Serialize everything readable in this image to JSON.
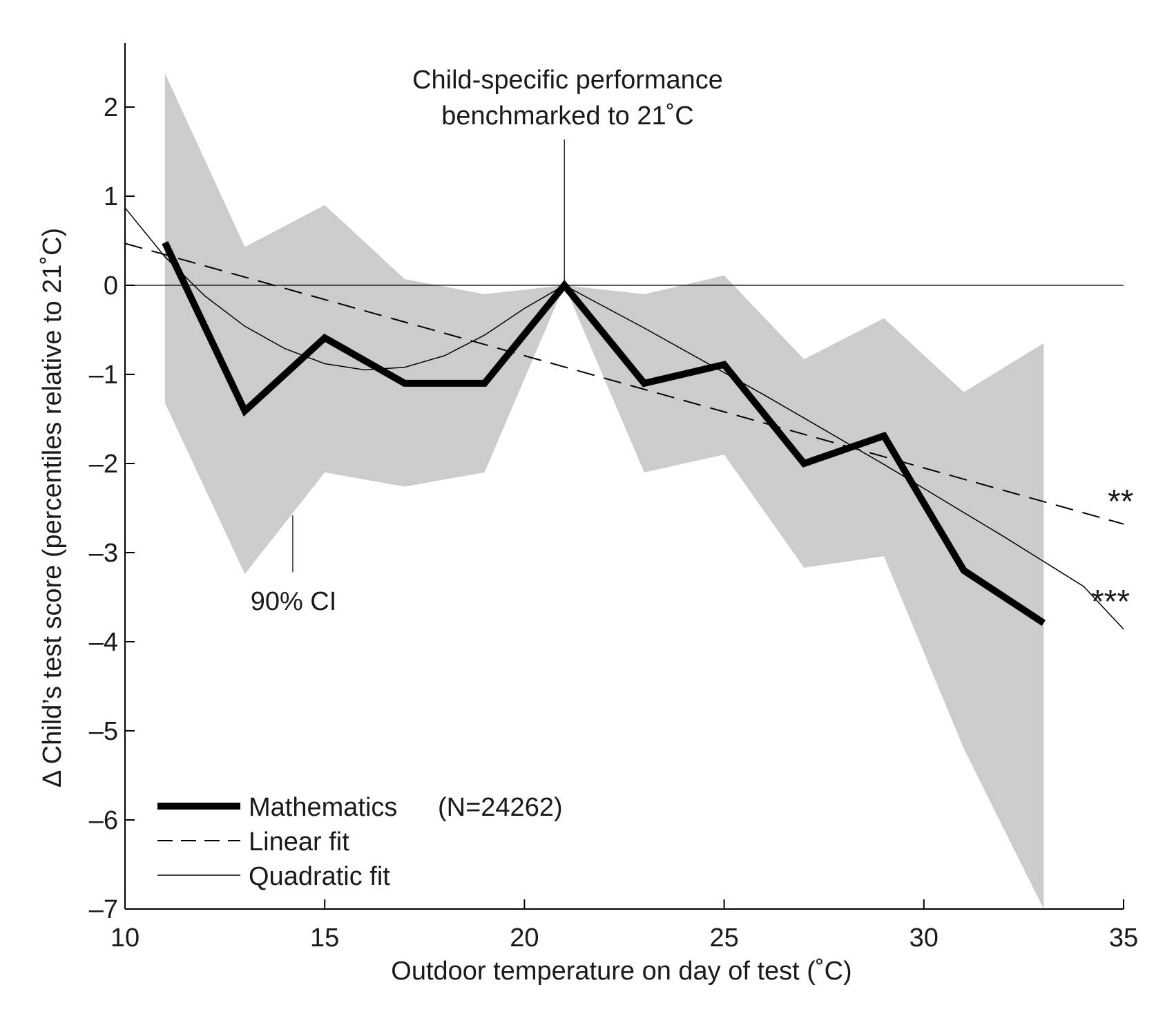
{
  "chart_data": {
    "type": "line",
    "xlabel": "Outdoor temperature on day of test (˚C)",
    "ylabel": "Δ Child’s test score (percentiles relative to 21˚C)",
    "xlim": [
      10,
      35
    ],
    "ylim": [
      -7,
      2.5
    ],
    "xticks": [
      10,
      15,
      20,
      25,
      30,
      35
    ],
    "yticks": [
      2,
      1,
      0,
      -1,
      -2,
      -3,
      -4,
      -5,
      -6,
      -7
    ],
    "xtick_labels": [
      "10",
      "15",
      "20",
      "25",
      "30",
      "35"
    ],
    "ytick_labels": [
      "2",
      "1",
      "0",
      "–1",
      "–2",
      "–3",
      "–4",
      "–5",
      "–6",
      "–7"
    ],
    "zero_line": 0,
    "benchmark_x": 21,
    "ci_band": {
      "label": "90% CI",
      "x": [
        11,
        13,
        15,
        17,
        19,
        21,
        23,
        25,
        27,
        29,
        31,
        33
      ],
      "upper": [
        2.38,
        0.43,
        0.9,
        0.07,
        -0.1,
        0.0,
        -0.1,
        0.11,
        -0.83,
        -0.37,
        -1.2,
        -0.65
      ],
      "lower": [
        -1.32,
        -3.24,
        -2.1,
        -2.26,
        -2.1,
        0.0,
        -2.1,
        -1.9,
        -3.17,
        -3.04,
        -5.2,
        -7.0
      ]
    },
    "series": [
      {
        "name": "Mathematics",
        "x": [
          11,
          13,
          15,
          17,
          19,
          21,
          23,
          25,
          27,
          29,
          31,
          33
        ],
        "values": [
          0.48,
          -1.41,
          -0.59,
          -1.1,
          -1.1,
          0.0,
          -1.1,
          -0.89,
          -2.0,
          -1.69,
          -3.2,
          -3.79
        ],
        "color": "#000000",
        "style": "thick-solid"
      },
      {
        "name": "Linear fit",
        "x": [
          10,
          35
        ],
        "values": [
          0.47,
          -2.68
        ],
        "color": "#000000",
        "style": "dashed"
      },
      {
        "name": "Quadratic fit",
        "x": [
          10,
          11,
          12,
          13,
          14,
          15,
          16,
          17,
          18,
          19,
          20,
          21,
          22,
          23,
          24,
          25,
          26,
          27,
          28,
          29,
          30,
          31,
          32,
          33,
          34,
          35
        ],
        "values": [
          0.87,
          0.32,
          -0.12,
          -0.46,
          -0.71,
          -0.88,
          -0.95,
          -0.92,
          -0.79,
          -0.56,
          -0.26,
          0.0,
          -0.24,
          -0.48,
          -0.73,
          -0.98,
          -1.23,
          -1.49,
          -1.75,
          -2.01,
          -2.28,
          -2.55,
          -2.82,
          -3.1,
          -3.38,
          -3.86
        ],
        "color": "#000000",
        "style": "thin-solid"
      }
    ],
    "legend": {
      "placement": "bottom-left",
      "entries": [
        {
          "label": "Mathematics",
          "extra": "(N=24262)",
          "style": "thick-solid"
        },
        {
          "label": "Linear fit",
          "style": "dashed"
        },
        {
          "label": "Quadratic fit",
          "style": "thin-solid"
        }
      ]
    },
    "annotations": {
      "benchmark_line1": "Child-specific performance",
      "benchmark_line2": "benchmarked to 21˚C",
      "ci_label": "90% CI",
      "linear_sig": "**",
      "quadratic_sig": "***"
    },
    "colors": {
      "ci_fill": "#cccccc",
      "lines": "#000000"
    }
  }
}
